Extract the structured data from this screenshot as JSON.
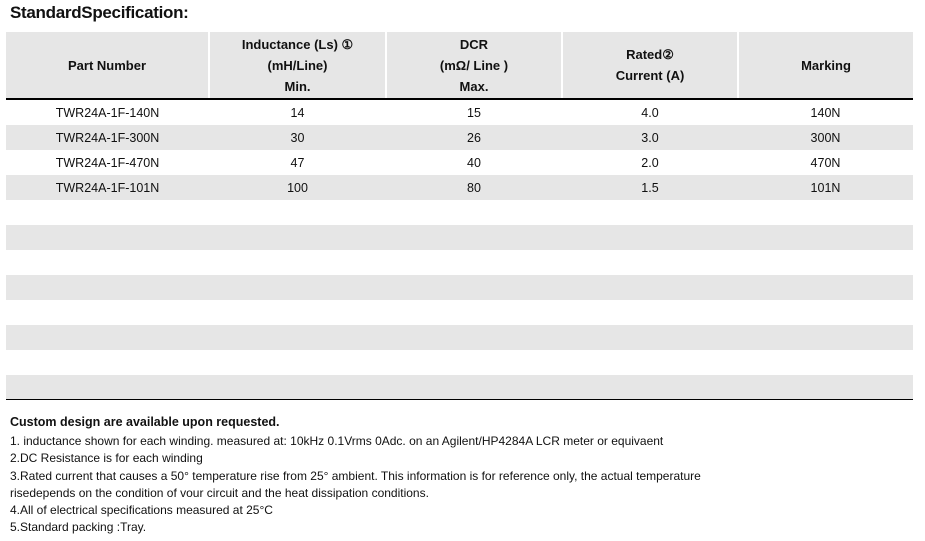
{
  "title": "StandardSpecification:",
  "table": {
    "headers": [
      [
        "Part Number"
      ],
      [
        "Inductance (Ls) ①",
        "(mH/Line)",
        "Min."
      ],
      [
        "DCR",
        "(mΩ/ Line )",
        "Max."
      ],
      [
        "Rated②",
        "Current  (A)"
      ],
      [
        "Marking"
      ]
    ],
    "rows": [
      [
        "TWR24A-1F-140N",
        "14",
        "15",
        "4.0",
        "140N"
      ],
      [
        "TWR24A-1F-300N",
        "30",
        "26",
        "3.0",
        "300N"
      ],
      [
        "TWR24A-1F-470N",
        "47",
        "40",
        "2.0",
        "470N"
      ],
      [
        "TWR24A-1F-101N",
        "100",
        "80",
        "1.5",
        "101N"
      ]
    ]
  },
  "notes": {
    "heading": "Custom design are available upon requested.",
    "lines": [
      "1. inductance shown for each winding. measured at: 10kHz 0.1Vrms 0Adc. on an Agilent/HP4284A LCR meter or equivaent",
      "2.DC Resistance is for each winding",
      "3.Rated current that causes a 50° temperature rise from 25° ambient. This information is for reference only, the actual temperature",
      "risedepends on the condition of vour circuit and the heat dissipation conditions.",
      "4.All of electrical specifications measured at 25°C",
      "5.Standard packing :Tray."
    ]
  }
}
